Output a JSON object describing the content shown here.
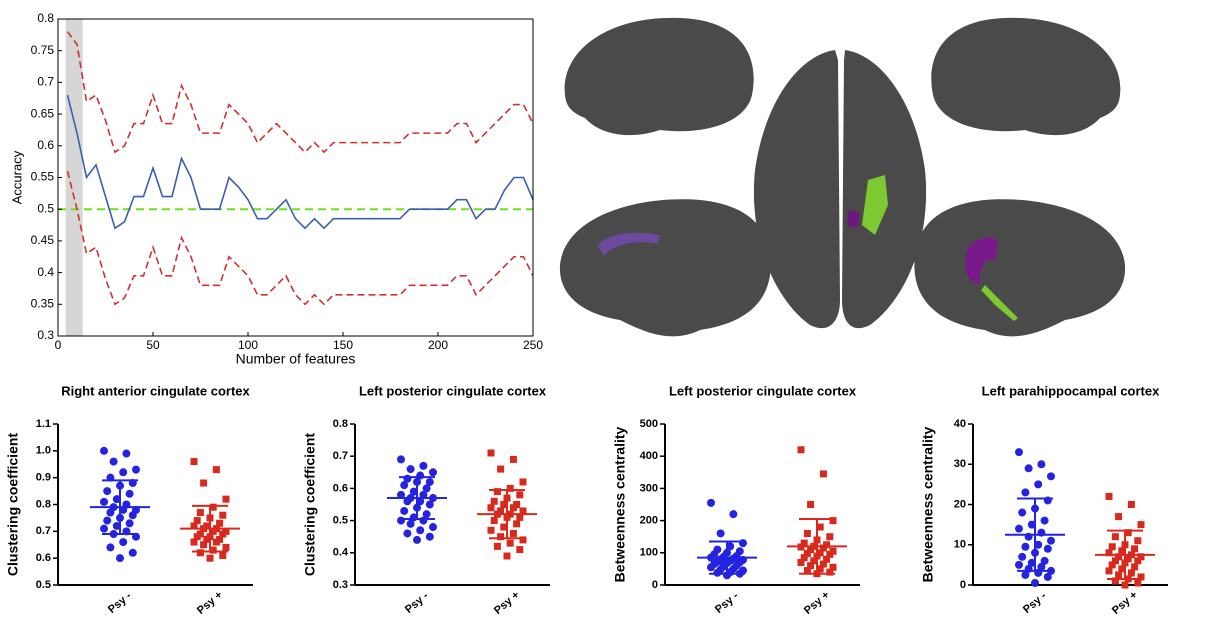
{
  "chart_data": [
    {
      "type": "line",
      "xlabel": "Number of features",
      "ylabel": "Accuracy",
      "x": [
        5,
        10,
        15,
        20,
        25,
        30,
        35,
        40,
        45,
        50,
        55,
        60,
        65,
        70,
        75,
        80,
        85,
        90,
        95,
        100,
        105,
        110,
        115,
        120,
        125,
        130,
        135,
        140,
        145,
        150,
        155,
        160,
        165,
        170,
        175,
        180,
        185,
        190,
        195,
        200,
        205,
        210,
        215,
        220,
        225,
        230,
        235,
        240,
        245,
        250
      ],
      "series": [
        {
          "color": "#3a5fb0",
          "dash": false,
          "values": [
            0.68,
            0.62,
            0.55,
            0.57,
            0.52,
            0.47,
            0.48,
            0.52,
            0.52,
            0.565,
            0.52,
            0.52,
            0.58,
            0.55,
            0.5,
            0.5,
            0.5,
            0.55,
            0.535,
            0.515,
            0.485,
            0.485,
            0.5,
            0.515,
            0.485,
            0.47,
            0.485,
            0.47,
            0.485,
            0.485,
            0.485,
            0.485,
            0.485,
            0.485,
            0.485,
            0.485,
            0.5,
            0.5,
            0.5,
            0.5,
            0.5,
            0.515,
            0.515,
            0.485,
            0.5,
            0.5,
            0.53,
            0.55,
            0.55,
            0.515
          ]
        },
        {
          "color": "#d0312d",
          "dash": true,
          "values": [
            0.78,
            0.76,
            0.67,
            0.68,
            0.64,
            0.59,
            0.6,
            0.635,
            0.635,
            0.68,
            0.635,
            0.635,
            0.695,
            0.665,
            0.62,
            0.62,
            0.62,
            0.665,
            0.65,
            0.635,
            0.605,
            0.62,
            0.635,
            0.62,
            0.605,
            0.59,
            0.605,
            0.59,
            0.605,
            0.605,
            0.605,
            0.605,
            0.605,
            0.605,
            0.605,
            0.605,
            0.62,
            0.62,
            0.62,
            0.62,
            0.62,
            0.635,
            0.635,
            0.605,
            0.62,
            0.635,
            0.65,
            0.665,
            0.665,
            0.635
          ]
        },
        {
          "color": "#d0312d",
          "dash": true,
          "values": [
            0.56,
            0.5,
            0.43,
            0.44,
            0.39,
            0.35,
            0.36,
            0.395,
            0.395,
            0.44,
            0.395,
            0.395,
            0.455,
            0.425,
            0.38,
            0.38,
            0.38,
            0.425,
            0.41,
            0.395,
            0.365,
            0.365,
            0.38,
            0.395,
            0.365,
            0.35,
            0.365,
            0.35,
            0.365,
            0.365,
            0.365,
            0.365,
            0.365,
            0.365,
            0.365,
            0.365,
            0.38,
            0.38,
            0.38,
            0.38,
            0.38,
            0.395,
            0.395,
            0.365,
            0.38,
            0.395,
            0.41,
            0.425,
            0.425,
            0.395
          ]
        }
      ],
      "reference_line": {
        "value": 0.5,
        "color": "#6ee01f"
      },
      "shaded_region": [
        4,
        13
      ],
      "shade_color": "#d6d6d6",
      "xlim": [
        0,
        250
      ],
      "xticks": [
        0,
        50,
        100,
        150,
        200,
        250
      ],
      "ylim": [
        0.3,
        0.8
      ],
      "yticks": [
        0.3,
        0.35,
        0.4,
        0.45,
        0.5,
        0.55,
        0.6,
        0.65,
        0.7,
        0.75,
        0.8
      ]
    },
    {
      "type": "dotplot",
      "title": "Right anterior cingulate cortex",
      "ylabel": "Clustering coefficient",
      "categories": [
        "Psy -",
        "Psy +"
      ],
      "groups": [
        {
          "marker": "circle",
          "color": "#2323e0",
          "mean": 0.79,
          "sd": 0.1,
          "values": [
            1.0,
            0.99,
            0.96,
            0.93,
            0.92,
            0.9,
            0.88,
            0.87,
            0.85,
            0.84,
            0.82,
            0.81,
            0.8,
            0.79,
            0.78,
            0.78,
            0.77,
            0.76,
            0.75,
            0.74,
            0.73,
            0.72,
            0.71,
            0.7,
            0.69,
            0.68,
            0.66,
            0.64,
            0.62,
            0.6
          ]
        },
        {
          "marker": "square",
          "color": "#d9291c",
          "mean": 0.71,
          "sd": 0.085,
          "values": [
            0.96,
            0.93,
            0.88,
            0.82,
            0.79,
            0.77,
            0.76,
            0.75,
            0.74,
            0.73,
            0.72,
            0.72,
            0.71,
            0.71,
            0.7,
            0.7,
            0.69,
            0.69,
            0.68,
            0.68,
            0.67,
            0.67,
            0.66,
            0.66,
            0.65,
            0.64,
            0.63,
            0.62,
            0.61,
            0.6
          ]
        }
      ],
      "ylim": [
        0.5,
        1.1
      ],
      "yticks": [
        0.5,
        0.6,
        0.7,
        0.8,
        0.9,
        {
          "value": 1,
          "label": "1.0"
        },
        1.1
      ]
    },
    {
      "type": "dotplot",
      "title": "Left posterior cingulate cortex",
      "ylabel": "Clustering coefficient",
      "categories": [
        "Psy -",
        "Psy +"
      ],
      "groups": [
        {
          "marker": "circle",
          "color": "#2323e0",
          "mean": 0.57,
          "sd": 0.065,
          "values": [
            0.69,
            0.67,
            0.66,
            0.65,
            0.64,
            0.63,
            0.62,
            0.62,
            0.61,
            0.6,
            0.59,
            0.58,
            0.58,
            0.57,
            0.57,
            0.56,
            0.56,
            0.55,
            0.54,
            0.53,
            0.52,
            0.51,
            0.5,
            0.5,
            0.49,
            0.48,
            0.47,
            0.46,
            0.45,
            0.44
          ]
        },
        {
          "marker": "square",
          "color": "#d9291c",
          "mean": 0.52,
          "sd": 0.075,
          "values": [
            0.71,
            0.69,
            0.66,
            0.62,
            0.6,
            0.59,
            0.58,
            0.57,
            0.56,
            0.55,
            0.55,
            0.54,
            0.54,
            0.53,
            0.53,
            0.52,
            0.52,
            0.51,
            0.51,
            0.5,
            0.49,
            0.48,
            0.47,
            0.46,
            0.45,
            0.44,
            0.43,
            0.42,
            0.41,
            0.39
          ]
        }
      ],
      "ylim": [
        0.3,
        0.8
      ],
      "yticks": [
        0.3,
        0.4,
        0.5,
        0.6,
        0.7,
        0.8
      ]
    },
    {
      "type": "dotplot",
      "title": "Left posterior cingulate cortex",
      "ylabel": "Betweenness centrality",
      "categories": [
        "Psy -",
        "Psy +"
      ],
      "groups": [
        {
          "marker": "circle",
          "color": "#2323e0",
          "mean": 85,
          "sd": 50,
          "values": [
            255,
            220,
            160,
            130,
            120,
            110,
            105,
            100,
            95,
            90,
            88,
            85,
            82,
            80,
            78,
            75,
            72,
            70,
            68,
            65,
            60,
            58,
            55,
            50,
            48,
            45,
            40,
            38,
            35,
            30
          ]
        },
        {
          "marker": "square",
          "color": "#d9291c",
          "mean": 120,
          "sd": 85,
          "values": [
            420,
            345,
            250,
            200,
            180,
            160,
            150,
            140,
            130,
            125,
            120,
            118,
            115,
            110,
            105,
            100,
            98,
            95,
            90,
            85,
            80,
            75,
            70,
            65,
            60,
            55,
            50,
            45,
            40,
            35
          ]
        }
      ],
      "ylim": [
        0,
        500
      ],
      "yticks": [
        0,
        100,
        200,
        300,
        400,
        500
      ]
    },
    {
      "type": "dotplot",
      "title": "Left parahippocampal cortex",
      "ylabel": "Betweenness centrality",
      "categories": [
        "Psy -",
        "Psy +"
      ],
      "groups": [
        {
          "marker": "circle",
          "color": "#2323e0",
          "mean": 12.5,
          "sd": 9,
          "values": [
            33,
            30,
            29,
            27,
            25,
            23,
            21,
            19,
            18,
            16,
            15,
            14,
            13,
            12,
            11,
            10,
            9.5,
            9,
            8,
            7,
            6,
            5.5,
            5,
            4.5,
            4,
            3.5,
            3,
            2.5,
            2,
            0.5
          ]
        },
        {
          "marker": "square",
          "color": "#d9291c",
          "mean": 7.5,
          "sd": 6,
          "values": [
            22,
            20,
            17,
            15,
            13,
            12,
            11,
            10,
            9.5,
            9,
            8.5,
            8,
            7.5,
            7,
            7,
            6.5,
            6,
            6,
            5.5,
            5,
            4.5,
            4,
            3.5,
            3,
            2.5,
            2,
            1.5,
            1,
            0.5,
            0
          ]
        }
      ],
      "ylim": [
        0,
        40
      ],
      "yticks": [
        0,
        10,
        20,
        30,
        40
      ]
    }
  ]
}
